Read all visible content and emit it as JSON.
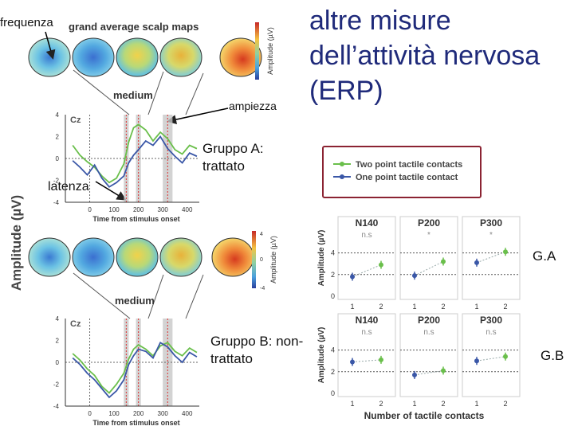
{
  "slide": {
    "title": "altre misure dell’attività nervosa (ERP)",
    "label_frequenza": "frequenza",
    "label_ampiezza": "ampiezza",
    "label_latenza": "latenza",
    "label_gruppo_a": "Gruppo A: trattato",
    "label_gruppo_b": "Gruppo B: non-trattato",
    "label_ga": "G.A",
    "label_gb": "G.B",
    "y_axis_main": "Amplitude (µV)"
  },
  "colors": {
    "green": "#6abf4b",
    "blue": "#3a57a7",
    "title": "#1f2a7a",
    "legend_border": "#8b2332"
  },
  "scalp_top": {
    "header": "grand average scalp maps",
    "colorbar_label": "Amplitude (µV)",
    "condition": "medium"
  },
  "scalp_bottom": {
    "colorbar_label": "Amplitude (µV)",
    "colorbar_ticks": [
      "4",
      "0",
      "-4"
    ],
    "condition": "medium"
  },
  "chart_data": [
    {
      "type": "line",
      "panel": "top",
      "channel": "Cz",
      "xlabel": "Time from stimulus onset",
      "ylabel": "",
      "xlim": [
        -100,
        450
      ],
      "ylim": [
        -4,
        4
      ],
      "x_ticks": [
        "0",
        "100",
        "200",
        "300",
        "400"
      ],
      "y_ticks": [
        "4",
        "2",
        "0",
        "-2",
        "-4"
      ],
      "shaded_windows": [
        [
          140,
          160
        ],
        [
          190,
          210
        ],
        [
          300,
          340
        ]
      ],
      "series": [
        {
          "color": "green",
          "x": [
            -70,
            -40,
            -10,
            20,
            50,
            80,
            110,
            140,
            160,
            180,
            200,
            230,
            260,
            290,
            320,
            350,
            380,
            410,
            440
          ],
          "y": [
            1.2,
            0.3,
            -0.3,
            -0.8,
            -1.6,
            -2.2,
            -1.8,
            -0.5,
            1.5,
            2.8,
            3.1,
            2.6,
            1.6,
            2.4,
            1.8,
            0.8,
            0.4,
            1.2,
            0.9
          ]
        },
        {
          "color": "blue",
          "x": [
            -70,
            -40,
            -10,
            20,
            50,
            80,
            110,
            140,
            160,
            180,
            200,
            230,
            260,
            290,
            320,
            350,
            380,
            410,
            440
          ],
          "y": [
            -0.2,
            -0.8,
            -1.5,
            -0.6,
            -1.8,
            -2.6,
            -2.2,
            -1.6,
            -0.4,
            0.3,
            0.8,
            1.6,
            1.2,
            2.0,
            0.9,
            0.2,
            -0.4,
            0.5,
            0.2
          ]
        }
      ]
    },
    {
      "type": "line",
      "panel": "bottom",
      "channel": "Cz",
      "xlabel": "Time from stimulus onset",
      "ylabel": "",
      "xlim": [
        -100,
        450
      ],
      "ylim": [
        -4,
        4
      ],
      "x_ticks": [
        "0",
        "100",
        "200",
        "300",
        "400"
      ],
      "y_ticks": [
        "4",
        "2",
        "0",
        "-2",
        "-4"
      ],
      "shaded_windows": [
        [
          140,
          160
        ],
        [
          190,
          210
        ],
        [
          300,
          340
        ]
      ],
      "series": [
        {
          "color": "green",
          "x": [
            -70,
            -40,
            -10,
            20,
            50,
            80,
            110,
            140,
            160,
            180,
            200,
            230,
            260,
            290,
            320,
            350,
            380,
            410,
            440
          ],
          "y": [
            0.8,
            0.2,
            -0.6,
            -1.2,
            -2.2,
            -2.8,
            -2.0,
            -1.0,
            0.3,
            1.2,
            1.6,
            1.2,
            0.6,
            1.5,
            1.8,
            1.0,
            0.6,
            1.3,
            0.9
          ]
        },
        {
          "color": "blue",
          "x": [
            -70,
            -40,
            -10,
            20,
            50,
            80,
            110,
            140,
            160,
            180,
            200,
            230,
            260,
            290,
            320,
            350,
            380,
            410,
            440
          ],
          "y": [
            0.4,
            -0.2,
            -1.0,
            -1.6,
            -2.4,
            -3.2,
            -2.6,
            -1.6,
            -0.2,
            0.6,
            1.2,
            1.0,
            0.4,
            1.8,
            1.4,
            0.6,
            0.0,
            0.9,
            0.5
          ]
        }
      ]
    },
    {
      "type": "line",
      "panel": "stats",
      "legend": [
        "Two point tactile contacts",
        "One point tactile contact"
      ],
      "ylabel": "Amplitude (µV)",
      "xlabel": "Number of tactile contacts",
      "x": [
        1,
        2
      ],
      "y_ticks": [
        "4",
        "2",
        "0"
      ],
      "groups": [
        {
          "name": "G.A",
          "panels": [
            {
              "component": "N140",
              "sig": "n.s",
              "values": [
                1.8,
                2.9
              ]
            },
            {
              "component": "P200",
              "sig": "*",
              "values": [
                1.9,
                3.2
              ]
            },
            {
              "component": "P300",
              "sig": "*",
              "values": [
                3.1,
                4.1
              ]
            }
          ]
        },
        {
          "name": "G.B",
          "panels": [
            {
              "component": "N140",
              "sig": "n.s",
              "values": [
                2.9,
                3.1
              ]
            },
            {
              "component": "P200",
              "sig": "n.s",
              "values": [
                1.7,
                2.1
              ]
            },
            {
              "component": "P300",
              "sig": "n.s",
              "values": [
                3.0,
                3.4
              ]
            }
          ]
        }
      ]
    }
  ]
}
